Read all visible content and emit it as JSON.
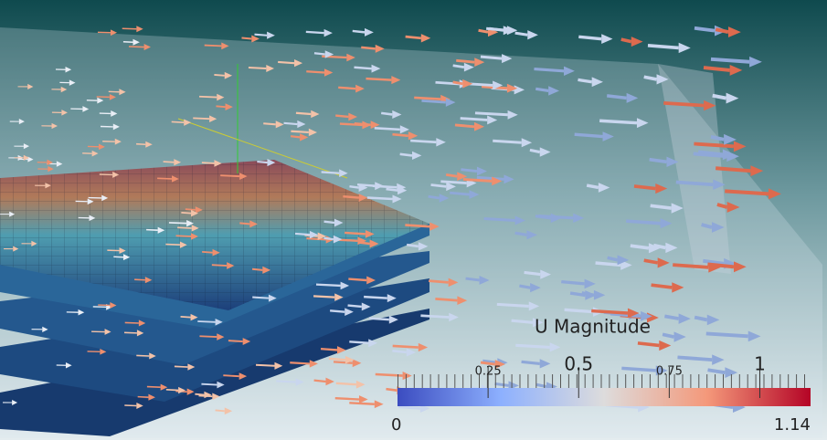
{
  "colorbar": {
    "title": "U Magnitude",
    "range": [
      0,
      1.14
    ],
    "ticks": [
      0.25,
      0.5,
      0.75,
      1
    ]
  }
}
